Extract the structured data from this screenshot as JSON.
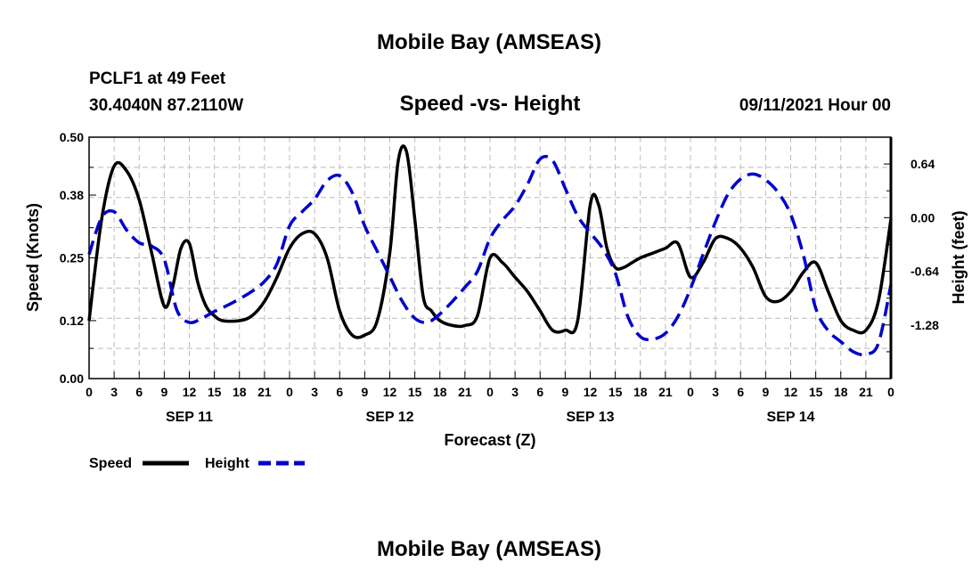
{
  "title": "Mobile Bay (AMSEAS)",
  "footer_title": "Mobile Bay (AMSEAS)",
  "station": "PCLF1 at 49 Feet",
  "coords": "30.4040N  87.2110W",
  "subtitle": "Speed -vs- Height",
  "datetime": "09/11/2021 Hour 00",
  "chart_data": {
    "type": "line",
    "title": "Speed -vs- Height",
    "xlabel": "Forecast (Z)",
    "ylabel": "Speed (Knots)",
    "y2label": "Height (feet)",
    "x_range_hours": [
      0,
      96
    ],
    "ylim": [
      0,
      0.5
    ],
    "y2lim": [
      -1.92,
      0.96
    ],
    "yticks": [
      0.0,
      0.12,
      0.25,
      0.38,
      0.5
    ],
    "ytick_labels": [
      "0.00",
      "0.12",
      "0.25",
      "0.38",
      "0.50"
    ],
    "y2ticks": [
      0.64,
      0.0,
      -0.64,
      -1.28
    ],
    "y2tick_labels": [
      "0.64",
      "0.00",
      "-0.64",
      "-1.28"
    ],
    "xtick_labels": [
      "0",
      "3",
      "6",
      "9",
      "12",
      "15",
      "18",
      "21",
      "0",
      "3",
      "6",
      "9",
      "12",
      "15",
      "18",
      "21",
      "0",
      "3",
      "6",
      "9",
      "12",
      "15",
      "18",
      "21",
      "0",
      "3",
      "6",
      "9",
      "12",
      "15",
      "18",
      "21",
      "0"
    ],
    "date_labels": [
      {
        "text": "SEP 11",
        "hour": 12
      },
      {
        "text": "SEP 12",
        "hour": 36
      },
      {
        "text": "SEP 13",
        "hour": 60
      },
      {
        "text": "SEP 14",
        "hour": 84
      }
    ],
    "grid": true,
    "legend_position": "bottom-left",
    "series": [
      {
        "name": "Speed",
        "axis": "left",
        "color": "#000000",
        "style": "solid",
        "x": [
          0,
          1.5,
          3,
          4.5,
          6,
          7.5,
          9,
          10,
          11,
          12,
          13,
          14,
          15,
          16,
          18,
          19.5,
          21,
          22.5,
          24,
          25.5,
          27,
          28.5,
          30,
          31.5,
          33,
          34.5,
          36,
          37,
          38,
          39,
          40,
          41,
          42,
          43.5,
          45,
          46.5,
          48,
          49.5,
          51,
          52.5,
          54,
          55.5,
          57,
          58.5,
          60,
          61,
          62,
          63,
          64,
          65,
          66,
          67.5,
          69,
          70.5,
          72,
          73.5,
          75,
          76.5,
          78,
          79.5,
          81,
          82.5,
          84,
          85.5,
          87,
          88.5,
          90,
          91.5,
          93,
          94.5,
          96
        ],
        "values": [
          0.12,
          0.33,
          0.44,
          0.43,
          0.37,
          0.26,
          0.15,
          0.19,
          0.27,
          0.28,
          0.2,
          0.15,
          0.13,
          0.12,
          0.12,
          0.13,
          0.16,
          0.21,
          0.27,
          0.3,
          0.3,
          0.25,
          0.14,
          0.09,
          0.09,
          0.12,
          0.26,
          0.45,
          0.47,
          0.33,
          0.17,
          0.14,
          0.12,
          0.11,
          0.11,
          0.13,
          0.25,
          0.24,
          0.21,
          0.18,
          0.14,
          0.1,
          0.1,
          0.12,
          0.36,
          0.36,
          0.27,
          0.23,
          0.23,
          0.24,
          0.25,
          0.26,
          0.27,
          0.28,
          0.21,
          0.24,
          0.29,
          0.29,
          0.27,
          0.23,
          0.17,
          0.16,
          0.18,
          0.22,
          0.24,
          0.18,
          0.12,
          0.1,
          0.1,
          0.16,
          0.33
        ]
      },
      {
        "name": "Height",
        "axis": "right",
        "color": "#0000cc",
        "style": "dashed",
        "x": [
          0,
          1.5,
          3,
          4.5,
          6,
          7.5,
          9,
          10.5,
          12,
          13.5,
          15,
          16.5,
          18,
          19.5,
          21,
          22.5,
          24,
          25.5,
          27,
          28.5,
          30,
          31.5,
          33,
          34.5,
          36,
          37.5,
          39,
          40.5,
          42,
          43.5,
          45,
          46.5,
          48,
          49.5,
          51,
          52.5,
          54,
          55.5,
          57,
          58.5,
          60,
          61.5,
          63,
          64.5,
          66,
          67.5,
          69,
          70.5,
          72,
          73.5,
          75,
          76.5,
          78,
          79.5,
          81,
          82.5,
          84,
          85.5,
          87,
          88.5,
          90,
          91.5,
          93,
          94.5,
          96
        ],
        "values": [
          -0.44,
          0.0,
          0.07,
          -0.15,
          -0.3,
          -0.34,
          -0.5,
          -1.1,
          -1.25,
          -1.2,
          -1.12,
          -1.05,
          -0.97,
          -0.88,
          -0.76,
          -0.55,
          -0.1,
          0.07,
          0.22,
          0.44,
          0.5,
          0.3,
          -0.1,
          -0.4,
          -0.7,
          -1.0,
          -1.2,
          -1.25,
          -1.15,
          -1.0,
          -0.83,
          -0.64,
          -0.25,
          -0.03,
          0.14,
          0.4,
          0.7,
          0.68,
          0.35,
          0.02,
          -0.18,
          -0.37,
          -0.66,
          -1.18,
          -1.42,
          -1.45,
          -1.38,
          -1.18,
          -0.85,
          -0.44,
          -0.05,
          0.28,
          0.46,
          0.52,
          0.45,
          0.3,
          0.04,
          -0.44,
          -1.08,
          -1.35,
          -1.48,
          -1.6,
          -1.63,
          -1.5,
          -0.8
        ]
      }
    ]
  }
}
